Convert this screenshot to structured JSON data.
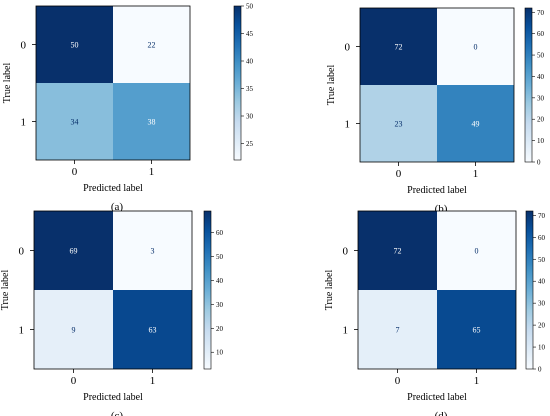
{
  "colors": {
    "cmap": [
      "#f7fbff",
      "#deebf7",
      "#c6dbef",
      "#9ecae1",
      "#6baed6",
      "#4292c6",
      "#2171b5",
      "#08519c",
      "#08306b"
    ]
  },
  "chart_data": [
    {
      "type": "heatmap",
      "panel_label": "(a)",
      "xlabel": "Predicted label",
      "ylabel": "True label",
      "x_tick_labels": [
        "0",
        "1"
      ],
      "y_tick_labels": [
        "0",
        "1"
      ],
      "matrix": [
        [
          50,
          22
        ],
        [
          34,
          38
        ]
      ],
      "colorbar": {
        "min": 22,
        "max": 50,
        "ticks": [
          25,
          30,
          35,
          40,
          45,
          50
        ]
      }
    },
    {
      "type": "heatmap",
      "panel_label": "(b)",
      "xlabel": "Predicted label",
      "ylabel": "True label",
      "x_tick_labels": [
        "0",
        "1"
      ],
      "y_tick_labels": [
        "0",
        "1"
      ],
      "matrix": [
        [
          72,
          0
        ],
        [
          23,
          49
        ]
      ],
      "colorbar": {
        "min": 0,
        "max": 72,
        "ticks": [
          0,
          10,
          20,
          30,
          40,
          50,
          60,
          70
        ]
      }
    },
    {
      "type": "heatmap",
      "panel_label": "(c)",
      "xlabel": "Predicted label",
      "ylabel": "True label",
      "x_tick_labels": [
        "0",
        "1"
      ],
      "y_tick_labels": [
        "0",
        "1"
      ],
      "matrix": [
        [
          69,
          3
        ],
        [
          9,
          63
        ]
      ],
      "colorbar": {
        "min": 3,
        "max": 69,
        "ticks": [
          10,
          20,
          30,
          40,
          50,
          60
        ]
      }
    },
    {
      "type": "heatmap",
      "panel_label": "(d)",
      "xlabel": "Predicted label",
      "ylabel": "True label",
      "x_tick_labels": [
        "0",
        "1"
      ],
      "y_tick_labels": [
        "0",
        "1"
      ],
      "matrix": [
        [
          72,
          0
        ],
        [
          7,
          65
        ]
      ],
      "colorbar": {
        "min": 0,
        "max": 72,
        "ticks": [
          0,
          10,
          20,
          30,
          40,
          50,
          60,
          70
        ]
      }
    }
  ]
}
